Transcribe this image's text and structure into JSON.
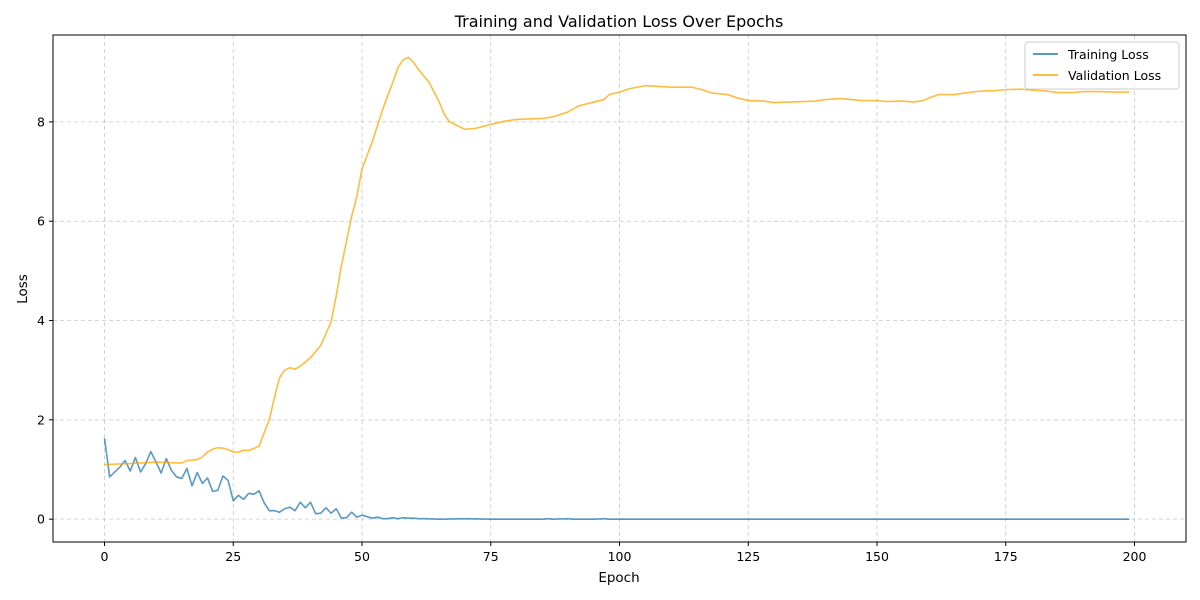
{
  "chart_data": {
    "type": "line",
    "title": "Training and Validation Loss Over Epochs",
    "xlabel": "Epoch",
    "ylabel": "Loss",
    "xlim": [
      -10,
      210
    ],
    "ylim": [
      -0.46,
      9.75
    ],
    "x_ticks": [
      0,
      25,
      50,
      75,
      100,
      125,
      150,
      175,
      200
    ],
    "y_ticks": [
      0,
      2,
      4,
      6,
      8
    ],
    "grid": true,
    "legend_position": "top-right",
    "series": [
      {
        "name": "Training Loss",
        "color": "#1f77b4",
        "points": [
          [
            0,
            1.63
          ],
          [
            1,
            0.85
          ],
          [
            2,
            0.95
          ],
          [
            3,
            1.05
          ],
          [
            4,
            1.18
          ],
          [
            5,
            0.97
          ],
          [
            6,
            1.24
          ],
          [
            7,
            0.95
          ],
          [
            8,
            1.12
          ],
          [
            9,
            1.36
          ],
          [
            10,
            1.15
          ],
          [
            11,
            0.93
          ],
          [
            12,
            1.22
          ],
          [
            13,
            0.98
          ],
          [
            14,
            0.85
          ],
          [
            15,
            0.82
          ],
          [
            16,
            1.02
          ],
          [
            17,
            0.67
          ],
          [
            18,
            0.94
          ],
          [
            19,
            0.72
          ],
          [
            20,
            0.83
          ],
          [
            21,
            0.56
          ],
          [
            22,
            0.58
          ],
          [
            23,
            0.87
          ],
          [
            24,
            0.78
          ],
          [
            25,
            0.37
          ],
          [
            26,
            0.48
          ],
          [
            27,
            0.4
          ],
          [
            28,
            0.52
          ],
          [
            29,
            0.5
          ],
          [
            30,
            0.57
          ],
          [
            31,
            0.33
          ],
          [
            32,
            0.17
          ],
          [
            33,
            0.17
          ],
          [
            34,
            0.14
          ],
          [
            35,
            0.21
          ],
          [
            36,
            0.24
          ],
          [
            37,
            0.17
          ],
          [
            38,
            0.34
          ],
          [
            39,
            0.23
          ],
          [
            40,
            0.34
          ],
          [
            41,
            0.11
          ],
          [
            42,
            0.12
          ],
          [
            43,
            0.23
          ],
          [
            44,
            0.12
          ],
          [
            45,
            0.21
          ],
          [
            46,
            0.02
          ],
          [
            47,
            0.03
          ],
          [
            48,
            0.14
          ],
          [
            49,
            0.04
          ],
          [
            50,
            0.08
          ],
          [
            51,
            0.05
          ],
          [
            52,
            0.02
          ],
          [
            53,
            0.04
          ],
          [
            54,
            0.01
          ],
          [
            55,
            0.01
          ],
          [
            56,
            0.03
          ],
          [
            57,
            0.01
          ],
          [
            58,
            0.03
          ],
          [
            59,
            0.02
          ],
          [
            60,
            0.02
          ],
          [
            61,
            0.01
          ],
          [
            62,
            0.01
          ],
          [
            65,
            0.0
          ],
          [
            70,
            0.01
          ],
          [
            75,
            0.0
          ],
          [
            80,
            0.0
          ],
          [
            85,
            0.0
          ],
          [
            86,
            0.01
          ],
          [
            87,
            0.0
          ],
          [
            90,
            0.01
          ],
          [
            91,
            0.0
          ],
          [
            95,
            0.0
          ],
          [
            97,
            0.01
          ],
          [
            98,
            0.0
          ],
          [
            120,
            0.0
          ],
          [
            150,
            0.0
          ],
          [
            175,
            0.0
          ],
          [
            199,
            0.0
          ]
        ]
      },
      {
        "name": "Validation Loss",
        "color": "#ffa500",
        "points": [
          [
            0,
            1.1
          ],
          [
            5,
            1.12
          ],
          [
            10,
            1.15
          ],
          [
            15,
            1.13
          ],
          [
            16,
            1.18
          ],
          [
            18,
            1.2
          ],
          [
            19,
            1.25
          ],
          [
            20,
            1.35
          ],
          [
            21,
            1.41
          ],
          [
            22,
            1.44
          ],
          [
            23,
            1.43
          ],
          [
            24,
            1.4
          ],
          [
            25,
            1.35
          ],
          [
            26,
            1.35
          ],
          [
            27,
            1.39
          ],
          [
            28,
            1.38
          ],
          [
            30,
            1.47
          ],
          [
            32,
            2.0
          ],
          [
            33,
            2.45
          ],
          [
            34,
            2.85
          ],
          [
            35,
            3.0
          ],
          [
            36,
            3.05
          ],
          [
            37,
            3.02
          ],
          [
            38,
            3.08
          ],
          [
            40,
            3.25
          ],
          [
            42,
            3.5
          ],
          [
            44,
            3.97
          ],
          [
            45,
            4.5
          ],
          [
            46,
            5.1
          ],
          [
            47,
            5.6
          ],
          [
            48,
            6.1
          ],
          [
            49,
            6.5
          ],
          [
            50,
            7.05
          ],
          [
            52,
            7.6
          ],
          [
            54,
            8.25
          ],
          [
            56,
            8.8
          ],
          [
            57,
            9.1
          ],
          [
            58,
            9.25
          ],
          [
            59,
            9.3
          ],
          [
            60,
            9.2
          ],
          [
            61,
            9.05
          ],
          [
            63,
            8.8
          ],
          [
            65,
            8.4
          ],
          [
            66,
            8.15
          ],
          [
            67,
            8.0
          ],
          [
            68,
            7.95
          ],
          [
            70,
            7.85
          ],
          [
            72,
            7.87
          ],
          [
            75,
            7.95
          ],
          [
            78,
            8.02
          ],
          [
            80,
            8.05
          ],
          [
            85,
            8.07
          ],
          [
            87,
            8.1
          ],
          [
            90,
            8.2
          ],
          [
            92,
            8.32
          ],
          [
            95,
            8.4
          ],
          [
            97,
            8.45
          ],
          [
            98,
            8.55
          ],
          [
            100,
            8.6
          ],
          [
            102,
            8.67
          ],
          [
            105,
            8.73
          ],
          [
            107,
            8.72
          ],
          [
            110,
            8.7
          ],
          [
            114,
            8.7
          ],
          [
            116,
            8.65
          ],
          [
            118,
            8.58
          ],
          [
            121,
            8.55
          ],
          [
            123,
            8.48
          ],
          [
            125,
            8.43
          ],
          [
            128,
            8.42
          ],
          [
            130,
            8.39
          ],
          [
            133,
            8.4
          ],
          [
            138,
            8.42
          ],
          [
            140,
            8.45
          ],
          [
            143,
            8.47
          ],
          [
            145,
            8.45
          ],
          [
            147,
            8.43
          ],
          [
            150,
            8.43
          ],
          [
            152,
            8.41
          ],
          [
            155,
            8.42
          ],
          [
            157,
            8.4
          ],
          [
            159,
            8.43
          ],
          [
            160,
            8.48
          ],
          [
            162,
            8.55
          ],
          [
            165,
            8.55
          ],
          [
            167,
            8.58
          ],
          [
            170,
            8.62
          ],
          [
            173,
            8.63
          ],
          [
            175,
            8.65
          ],
          [
            178,
            8.66
          ],
          [
            180,
            8.64
          ],
          [
            183,
            8.62
          ],
          [
            185,
            8.59
          ],
          [
            188,
            8.59
          ],
          [
            190,
            8.61
          ],
          [
            193,
            8.61
          ],
          [
            196,
            8.6
          ],
          [
            199,
            8.6
          ]
        ]
      }
    ]
  }
}
